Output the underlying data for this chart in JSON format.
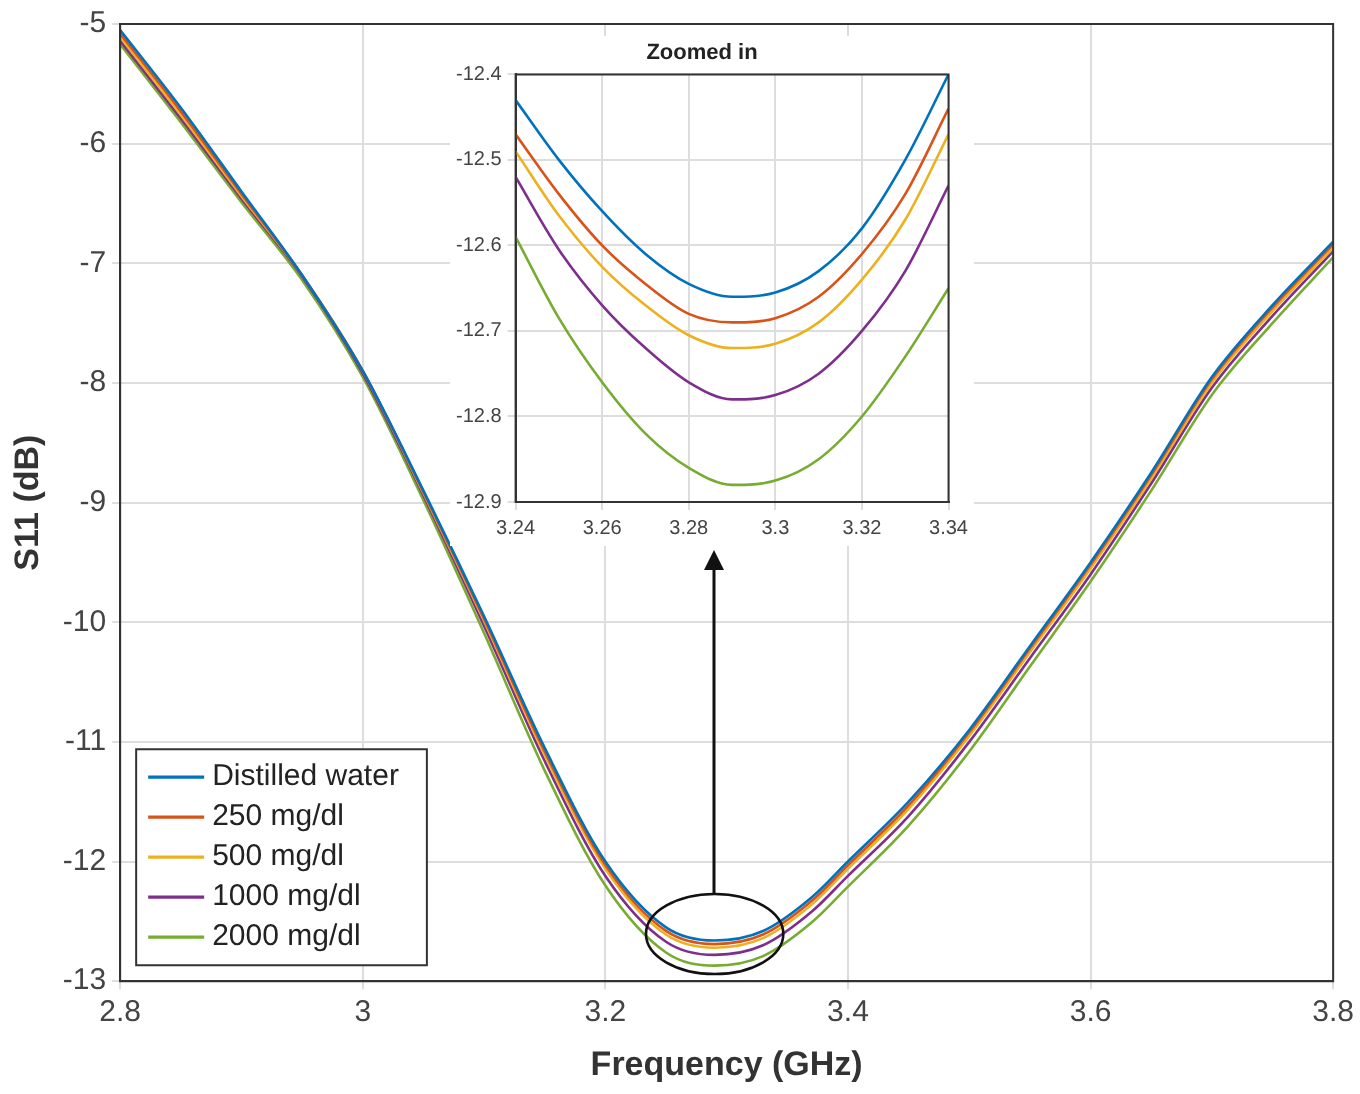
{
  "chart_data": [
    {
      "type": "line",
      "xlabel": "Frequency (GHz)",
      "ylabel": "S11 (dB)",
      "xlim": [
        2.8,
        3.8
      ],
      "ylim": [
        -13,
        -5
      ],
      "xticks": [
        2.8,
        3,
        3.2,
        3.4,
        3.6,
        3.8
      ],
      "yticks": [
        -13,
        -12,
        -11,
        -10,
        -9,
        -8,
        -7,
        -6,
        -5
      ],
      "grid": true,
      "legend": "bottom left",
      "marker": "none",
      "line_style": "solid",
      "x": [
        2.8,
        2.85,
        2.9,
        2.95,
        3.0,
        3.05,
        3.1,
        3.15,
        3.2,
        3.25,
        3.29,
        3.33,
        3.37,
        3.4,
        3.45,
        3.5,
        3.55,
        3.6,
        3.65,
        3.7,
        3.75,
        3.8
      ],
      "series": [
        {
          "name": "Distilled water",
          "color": "#0072bd",
          "values": [
            -5.05,
            -5.7,
            -6.4,
            -7.1,
            -7.9,
            -8.9,
            -9.95,
            -11.05,
            -12.0,
            -12.55,
            -12.66,
            -12.58,
            -12.3,
            -12.0,
            -11.5,
            -10.9,
            -10.2,
            -9.5,
            -8.75,
            -7.95,
            -7.35,
            -6.82
          ]
        },
        {
          "name": "250 mg/dl",
          "color": "#d95319",
          "values": [
            -5.08,
            -5.73,
            -6.42,
            -7.1,
            -7.9,
            -8.91,
            -9.97,
            -11.08,
            -12.03,
            -12.58,
            -12.69,
            -12.61,
            -12.33,
            -12.03,
            -11.53,
            -10.92,
            -10.22,
            -9.52,
            -8.77,
            -7.97,
            -7.37,
            -6.84
          ]
        },
        {
          "name": "500 mg/dl",
          "color": "#edb120",
          "values": [
            -5.11,
            -5.76,
            -6.44,
            -7.1,
            -7.9,
            -8.92,
            -9.99,
            -11.11,
            -12.06,
            -12.61,
            -12.72,
            -12.64,
            -12.36,
            -12.06,
            -11.56,
            -10.95,
            -10.25,
            -9.55,
            -8.8,
            -8.0,
            -7.4,
            -6.87
          ]
        },
        {
          "name": "1000 mg/dl",
          "color": "#7e2f8e",
          "values": [
            -5.14,
            -5.79,
            -6.46,
            -7.11,
            -7.92,
            -8.94,
            -10.03,
            -11.16,
            -12.12,
            -12.67,
            -12.78,
            -12.7,
            -12.42,
            -12.12,
            -11.62,
            -11.0,
            -10.3,
            -9.6,
            -8.84,
            -8.04,
            -7.44,
            -6.9
          ]
        },
        {
          "name": "2000 mg/dl",
          "color": "#77ac30",
          "values": [
            -5.17,
            -5.82,
            -6.49,
            -7.14,
            -7.95,
            -8.98,
            -10.09,
            -11.24,
            -12.2,
            -12.76,
            -12.87,
            -12.79,
            -12.51,
            -12.21,
            -11.7,
            -11.08,
            -10.37,
            -9.66,
            -8.9,
            -8.1,
            -7.5,
            -6.95
          ]
        }
      ]
    },
    {
      "type": "line",
      "title": "Zoomed in",
      "xlim": [
        3.24,
        3.34
      ],
      "ylim": [
        -12.9,
        -12.4
      ],
      "xticks": [
        3.24,
        3.26,
        3.28,
        3.3,
        3.32,
        3.34
      ],
      "yticks": [
        -12.9,
        -12.8,
        -12.7,
        -12.6,
        -12.5,
        -12.4
      ],
      "grid": true,
      "marker": "none",
      "line_style": "solid",
      "x": [
        3.24,
        3.25,
        3.26,
        3.27,
        3.28,
        3.29,
        3.3,
        3.31,
        3.32,
        3.33,
        3.34
      ],
      "series": [
        {
          "color": "#0072bd",
          "values": [
            -12.43,
            -12.5,
            -12.56,
            -12.61,
            -12.645,
            -12.66,
            -12.655,
            -12.63,
            -12.58,
            -12.5,
            -12.4
          ]
        },
        {
          "color": "#d95319",
          "values": [
            -12.47,
            -12.54,
            -12.6,
            -12.645,
            -12.68,
            -12.69,
            -12.685,
            -12.66,
            -12.61,
            -12.54,
            -12.44
          ]
        },
        {
          "color": "#edb120",
          "values": [
            -12.49,
            -12.565,
            -12.625,
            -12.67,
            -12.705,
            -12.72,
            -12.715,
            -12.69,
            -12.64,
            -12.57,
            -12.47
          ]
        },
        {
          "color": "#7e2f8e",
          "values": [
            -12.52,
            -12.605,
            -12.67,
            -12.72,
            -12.76,
            -12.78,
            -12.775,
            -12.75,
            -12.7,
            -12.63,
            -12.53
          ]
        },
        {
          "color": "#77ac30",
          "values": [
            -12.59,
            -12.685,
            -12.76,
            -12.82,
            -12.86,
            -12.88,
            -12.875,
            -12.85,
            -12.8,
            -12.73,
            -12.65
          ]
        }
      ]
    }
  ]
}
